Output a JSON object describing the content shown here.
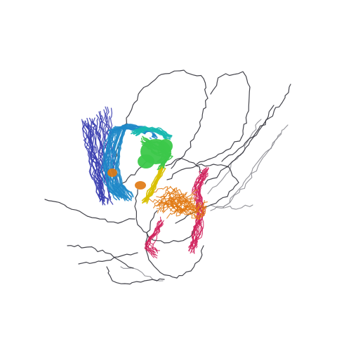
{
  "structure": {
    "kind": "protein-ensemble-cartoon",
    "regions": [
      {
        "name": "n-term-beta-sheet",
        "color": "#3b3fb0",
        "label": ""
      },
      {
        "name": "beta-barrel",
        "color": "#1e88c8",
        "label": ""
      },
      {
        "name": "cyan-helix",
        "color": "#18b8b0",
        "label": ""
      },
      {
        "name": "green-domain",
        "color": "#3cc84a",
        "label": ""
      },
      {
        "name": "yellow-segment",
        "color": "#d8c000",
        "label": ""
      },
      {
        "name": "orange-domain",
        "color": "#e07810",
        "label": ""
      },
      {
        "name": "magenta-domain",
        "color": "#d0205a",
        "label": ""
      },
      {
        "name": "flexible-loops",
        "color": "#303038",
        "label": ""
      },
      {
        "name": "gray-tails",
        "color": "#8a8a90",
        "label": ""
      }
    ],
    "background": "#ffffff"
  }
}
